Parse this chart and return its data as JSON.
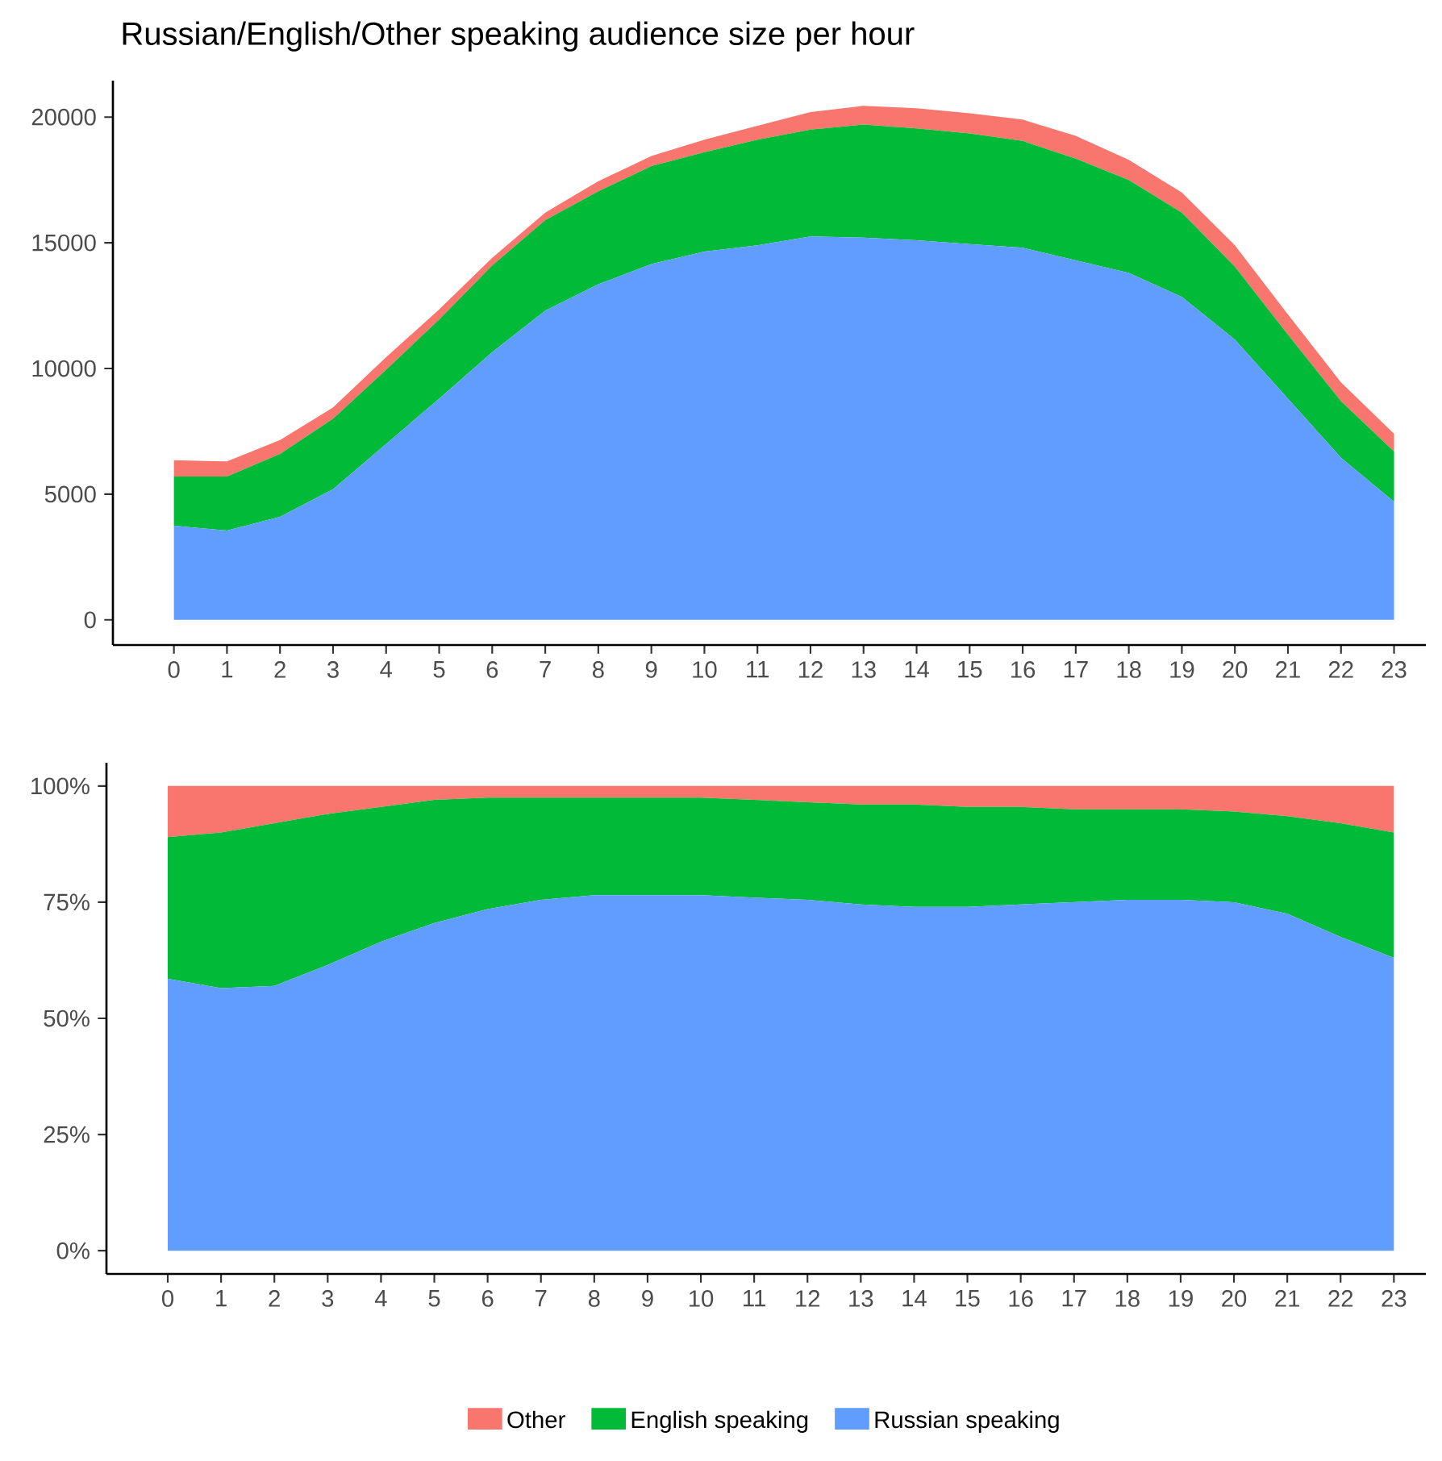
{
  "chart_data": [
    {
      "type": "area",
      "stacked": true,
      "title": "Russian/English/Other speaking audience size per hour",
      "categories": [
        "0",
        "1",
        "2",
        "3",
        "4",
        "5",
        "6",
        "7",
        "8",
        "9",
        "10",
        "11",
        "12",
        "13",
        "14",
        "15",
        "16",
        "17",
        "18",
        "19",
        "20",
        "21",
        "22",
        "23"
      ],
      "ylim": [
        -1000,
        21450
      ],
      "yticks": [
        0,
        5000,
        10000,
        15000,
        20000
      ],
      "series": [
        {
          "color": "#619cff",
          "values": [
            3750,
            3550,
            4100,
            5200,
            7000,
            8800,
            10650,
            12300,
            13350,
            14150,
            14650,
            14900,
            15250,
            15200,
            15100,
            14950,
            14800,
            14300,
            13800,
            12850,
            11150,
            8800,
            6450,
            4700
          ]
        },
        {
          "color": "#00ba38",
          "values": [
            1950,
            2150,
            2500,
            2800,
            2950,
            3150,
            3450,
            3600,
            3700,
            3900,
            3950,
            4200,
            4250,
            4500,
            4450,
            4400,
            4250,
            4050,
            3700,
            3350,
            2900,
            2550,
            2250,
            2000
          ]
        },
        {
          "color": "#f8766d",
          "values": [
            650,
            600,
            550,
            450,
            500,
            400,
            300,
            300,
            400,
            400,
            500,
            550,
            700,
            750,
            800,
            800,
            850,
            900,
            800,
            800,
            850,
            800,
            750,
            700
          ]
        }
      ]
    },
    {
      "type": "area",
      "stacked": true,
      "legend": "bottom",
      "categories": [
        "0",
        "1",
        "2",
        "3",
        "4",
        "5",
        "6",
        "7",
        "8",
        "9",
        "10",
        "11",
        "12",
        "13",
        "14",
        "15",
        "16",
        "17",
        "18",
        "19",
        "20",
        "21",
        "22",
        "23"
      ],
      "ylim": [
        -5,
        105
      ],
      "yticks": [
        {
          "value": 0,
          "label": "0%"
        },
        {
          "value": 25,
          "label": "25%"
        },
        {
          "value": 50,
          "label": "50%"
        },
        {
          "value": 75,
          "label": "75%"
        },
        {
          "value": 100,
          "label": "100%"
        }
      ],
      "series": [
        {
          "name": "Russian speaking",
          "color": "#619cff",
          "values": [
            58.5,
            56.5,
            57,
            61.5,
            66.5,
            70.5,
            73.5,
            75.5,
            76.5,
            76.5,
            76.5,
            76,
            75.5,
            74.5,
            74,
            74,
            74.5,
            75,
            75.5,
            75.5,
            75,
            72.5,
            67.5,
            63
          ]
        },
        {
          "name": "English speaking",
          "color": "#00ba38",
          "values": [
            30.5,
            33.5,
            35,
            32.5,
            29,
            26.5,
            24,
            22,
            21,
            21,
            21,
            21,
            21,
            21.5,
            22,
            21.5,
            21,
            20,
            19.5,
            19.5,
            19.5,
            21,
            24.5,
            27
          ]
        },
        {
          "name": "Other",
          "color": "#f8766d",
          "values": [
            11,
            10,
            8,
            6,
            4.5,
            3,
            2.5,
            2.5,
            2.5,
            2.5,
            2.5,
            3,
            3.5,
            4,
            4,
            4.5,
            4.5,
            5,
            5,
            5,
            5.5,
            6.5,
            8,
            10
          ]
        }
      ]
    }
  ]
}
